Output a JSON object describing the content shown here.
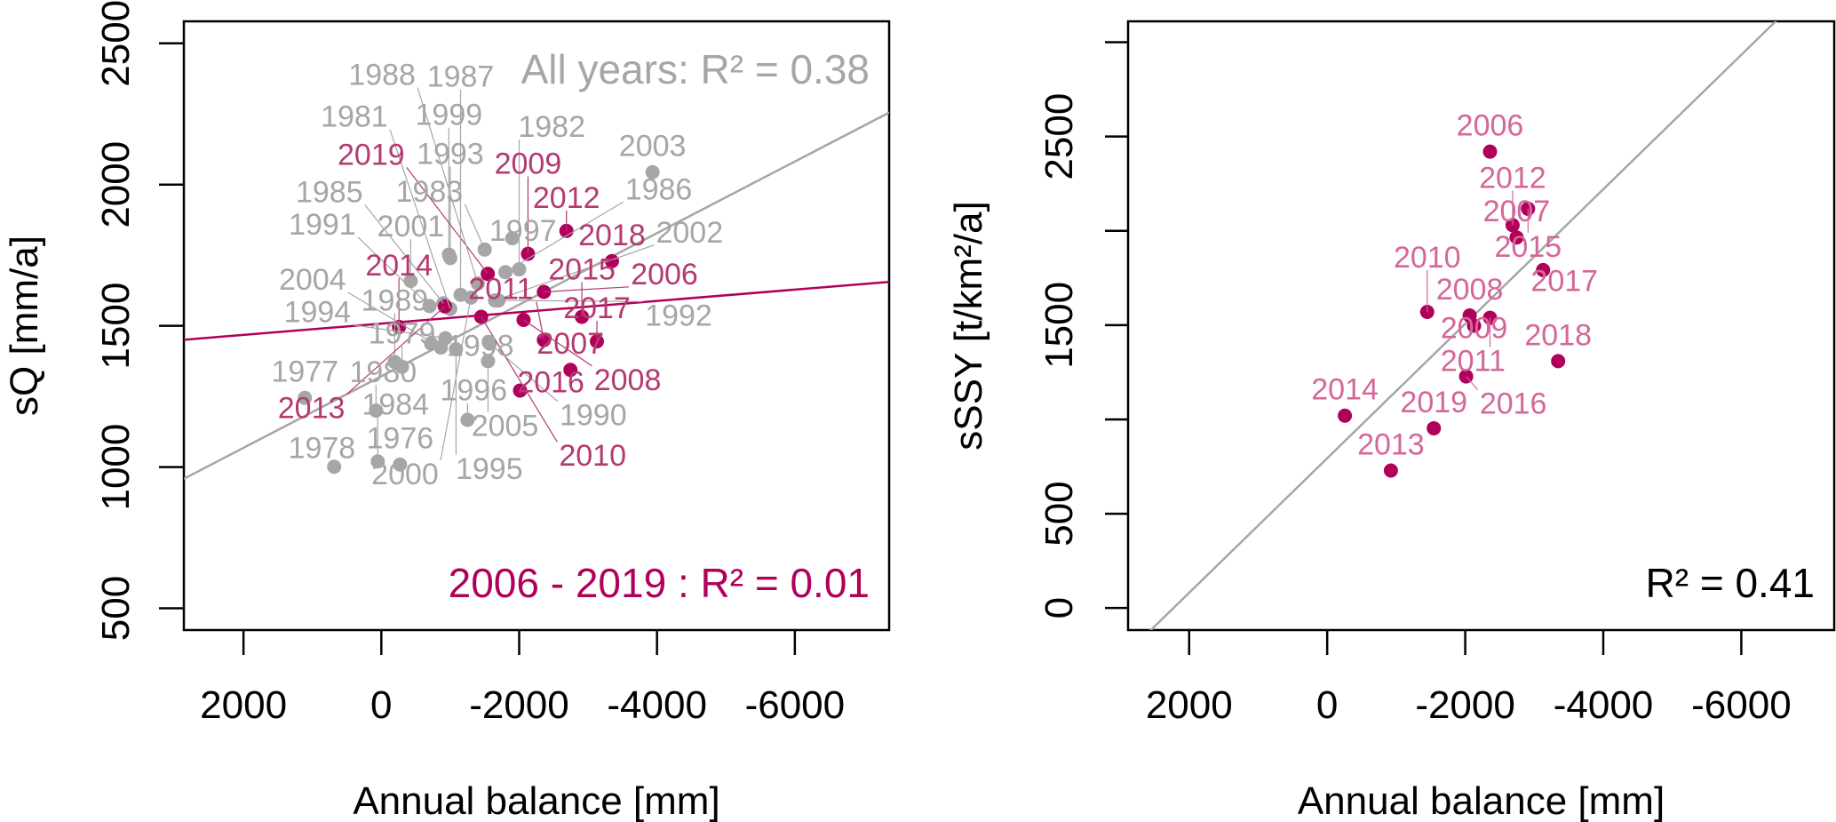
{
  "chart_data": [
    {
      "type": "scatter",
      "xlabel": "Annual balance [mm]",
      "ylabel": "sQ [mm/a]",
      "xlim": [
        2865,
        -7368
      ],
      "ylim": [
        423,
        2578
      ],
      "xticks": [
        2000,
        0,
        -2000,
        -4000,
        -6000
      ],
      "yticks": [
        500,
        1000,
        1500,
        2000,
        2500
      ],
      "yticks_labeled": [
        500,
        1000,
        1500,
        2000,
        2500
      ],
      "grid": false,
      "colors": {
        "all_years": "#a6a6a6",
        "recent": "#b0005a",
        "recent_label": "#b33a72"
      },
      "annotations": [
        {
          "text": "All years: R² =  0.38",
          "color": "#a6a6a6",
          "position": "top-right"
        },
        {
          "text": "2006 - 2019 : R² =  0.01",
          "color": "#b0005a",
          "position": "bottom-right"
        }
      ],
      "fits": [
        {
          "group": "all_years",
          "intercept": 1321.5,
          "slope": -0.1267,
          "color": "#a6a6a6"
        },
        {
          "group": "recent",
          "intercept": 1508,
          "slope": -0.02003,
          "color": "#b0005a"
        }
      ],
      "points": [
        {
          "label": "1976",
          "x": -271,
          "y": 1009,
          "group": "all_years"
        },
        {
          "label": "1977",
          "x": 1109,
          "y": 1245,
          "group": "all_years"
        },
        {
          "label": "1978",
          "x": 684,
          "y": 1001,
          "group": "all_years"
        },
        {
          "label": "1979",
          "x": -300,
          "y": 1355,
          "group": "all_years"
        },
        {
          "label": "1980",
          "x": 77,
          "y": 1200,
          "group": "all_years"
        },
        {
          "label": "1981",
          "x": -1000,
          "y": 1560,
          "group": "all_years"
        },
        {
          "label": "1982",
          "x": -2000,
          "y": 1700,
          "group": "all_years"
        },
        {
          "label": "1983",
          "x": -1500,
          "y": 1770,
          "group": "all_years"
        },
        {
          "label": "1984",
          "x": 52,
          "y": 1020,
          "group": "all_years"
        },
        {
          "label": "1985",
          "x": -900,
          "y": 1580,
          "group": "all_years"
        },
        {
          "label": "1986",
          "x": -1800,
          "y": 1690,
          "group": "all_years"
        },
        {
          "label": "1987",
          "x": -1150,
          "y": 1610,
          "group": "all_years"
        },
        {
          "label": "1988",
          "x": -1400,
          "y": 1650,
          "group": "all_years"
        },
        {
          "label": "1989",
          "x": -194,
          "y": 1372,
          "group": "all_years"
        },
        {
          "label": "1990",
          "x": -1574,
          "y": 1437,
          "group": "all_years"
        },
        {
          "label": "1991",
          "x": -700,
          "y": 1570,
          "group": "all_years"
        },
        {
          "label": "1992",
          "x": -1700,
          "y": 1590,
          "group": "all_years"
        },
        {
          "label": "1993",
          "x": -1000,
          "y": 1740,
          "group": "all_years"
        },
        {
          "label": "1994",
          "x": -929,
          "y": 1456,
          "group": "all_years"
        },
        {
          "label": "1995",
          "x": -1084,
          "y": 1417,
          "group": "all_years"
        },
        {
          "label": "1996",
          "x": -1251,
          "y": 1167,
          "group": "all_years"
        },
        {
          "label": "1997",
          "x": -1900,
          "y": 1810,
          "group": "all_years"
        },
        {
          "label": "1998",
          "x": -722,
          "y": 1437,
          "group": "all_years"
        },
        {
          "label": "1999",
          "x": -980,
          "y": 1752,
          "group": "all_years"
        },
        {
          "label": "2000",
          "x": -1300,
          "y": 1600,
          "group": "all_years"
        },
        {
          "label": "2001",
          "x": -426,
          "y": 1659,
          "group": "all_years"
        },
        {
          "label": "2002",
          "x": -1650,
          "y": 1590,
          "group": "all_years"
        },
        {
          "label": "2003",
          "x": -3935,
          "y": 2044,
          "group": "all_years"
        },
        {
          "label": "2004",
          "x": -864,
          "y": 1423,
          "group": "all_years"
        },
        {
          "label": "2005",
          "x": -1548,
          "y": 1375,
          "group": "all_years"
        },
        {
          "label": "2006",
          "x": -2359,
          "y": 1620,
          "group": "recent"
        },
        {
          "label": "2007",
          "x": -2744,
          "y": 1344,
          "group": "recent"
        },
        {
          "label": "2008",
          "x": -2064,
          "y": 1521,
          "group": "recent"
        },
        {
          "label": "2009",
          "x": -2128,
          "y": 1755,
          "group": "recent"
        },
        {
          "label": "2010",
          "x": -1449,
          "y": 1532,
          "group": "recent"
        },
        {
          "label": "2011",
          "x": -2359,
          "y": 1450,
          "group": "recent"
        },
        {
          "label": "2012",
          "x": -2686,
          "y": 1836,
          "group": "recent"
        },
        {
          "label": "2013",
          "x": -923,
          "y": 1569,
          "group": "recent"
        },
        {
          "label": "2014",
          "x": -256,
          "y": 1496,
          "group": "recent"
        },
        {
          "label": "2015",
          "x": -2910,
          "y": 1532,
          "group": "recent"
        },
        {
          "label": "2016",
          "x": -2013,
          "y": 1271,
          "group": "recent"
        },
        {
          "label": "2017",
          "x": -3128,
          "y": 1445,
          "group": "recent"
        },
        {
          "label": "2018",
          "x": -3346,
          "y": 1729,
          "group": "recent"
        },
        {
          "label": "2019",
          "x": -1545,
          "y": 1684,
          "group": "recent"
        }
      ]
    },
    {
      "type": "scatter",
      "xlabel": "Annual balance [mm]",
      "ylabel": "sSSY [t/km²/a]",
      "xlim": [
        2885,
        -7346
      ],
      "ylim": [
        -117,
        3111
      ],
      "xticks": [
        2000,
        0,
        -2000,
        -4000,
        -6000
      ],
      "yticks": [
        0,
        500,
        1000,
        1500,
        2000,
        2500,
        3000
      ],
      "yticks_labeled": [
        0,
        500,
        1500,
        2500
      ],
      "grid": false,
      "colors": {
        "recent": "#b0005a",
        "recent_label": "#d4679a",
        "fit": "#a6a6a6"
      },
      "annotations": [
        {
          "text": "R² =  0.41",
          "color": "#000000",
          "position": "bottom-right"
        }
      ],
      "fits": [
        {
          "group": "recent",
          "intercept": 794,
          "slope": -0.3566,
          "color": "#a6a6a6"
        }
      ],
      "points": [
        {
          "label": "2006",
          "x": -2359,
          "y": 2420,
          "group": "recent"
        },
        {
          "label": "2007",
          "x": -2744,
          "y": 1965,
          "group": "recent"
        },
        {
          "label": "2008",
          "x": -2064,
          "y": 1551,
          "group": "recent"
        },
        {
          "label": "2009",
          "x": -2128,
          "y": 1497,
          "group": "recent"
        },
        {
          "label": "2010",
          "x": -1449,
          "y": 1570,
          "group": "recent"
        },
        {
          "label": "2011",
          "x": -2359,
          "y": 1539,
          "group": "recent"
        },
        {
          "label": "2012",
          "x": -2686,
          "y": 2030,
          "group": "recent"
        },
        {
          "label": "2013",
          "x": -923,
          "y": 729,
          "group": "recent"
        },
        {
          "label": "2014",
          "x": -256,
          "y": 1020,
          "group": "recent"
        },
        {
          "label": "2015",
          "x": -2910,
          "y": 2117,
          "group": "recent"
        },
        {
          "label": "2016",
          "x": -2013,
          "y": 1228,
          "group": "recent"
        },
        {
          "label": "2017",
          "x": -3128,
          "y": 1792,
          "group": "recent"
        },
        {
          "label": "2018",
          "x": -3346,
          "y": 1309,
          "group": "recent"
        },
        {
          "label": "2019",
          "x": -1545,
          "y": 953,
          "group": "recent"
        }
      ]
    }
  ]
}
